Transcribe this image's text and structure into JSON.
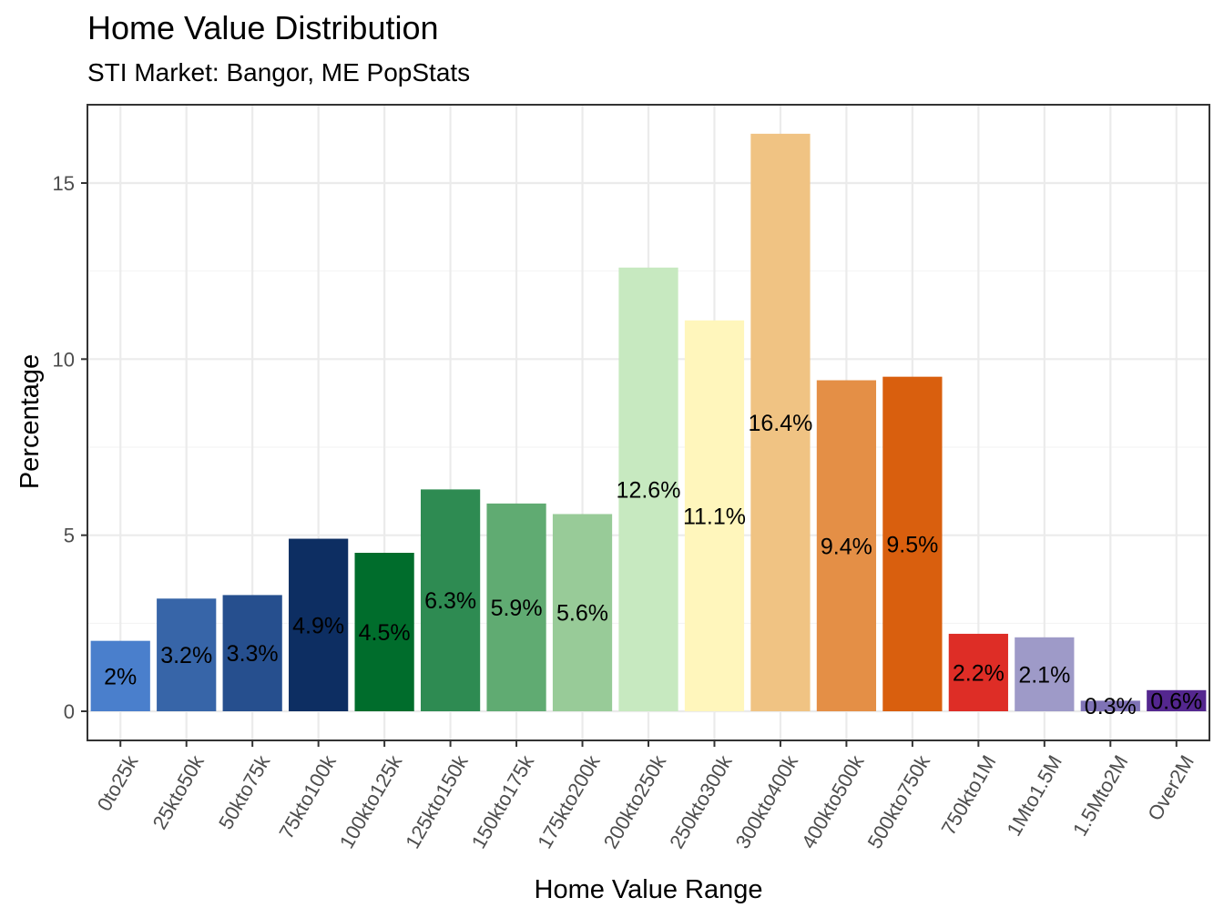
{
  "chart_data": {
    "type": "bar",
    "title": "Home Value Distribution",
    "subtitle": "STI Market: Bangor, ME PopStats",
    "xlabel": "Home Value Range",
    "ylabel": "Percentage",
    "ylim": [
      0,
      17
    ],
    "yticks": [
      0,
      5,
      10,
      15
    ],
    "grid": true,
    "categories": [
      "0to25k",
      "25kto50k",
      "50kto75k",
      "75kto100k",
      "100kto125k",
      "125kto150k",
      "150kto175k",
      "175kto200k",
      "200kto250k",
      "250kto300k",
      "300kto400k",
      "400kto500k",
      "500kto750k",
      "750kto1M",
      "1Mto1.5M",
      "1.5Mto2M",
      "Over2M"
    ],
    "values": [
      2.0,
      3.2,
      3.3,
      4.9,
      4.5,
      6.3,
      5.9,
      5.6,
      12.6,
      11.1,
      16.4,
      9.4,
      9.5,
      2.2,
      2.1,
      0.3,
      0.6
    ],
    "labels": [
      "2%",
      "3.2%",
      "3.3%",
      "4.9%",
      "4.5%",
      "6.3%",
      "5.9%",
      "5.6%",
      "12.6%",
      "11.1%",
      "16.4%",
      "9.4%",
      "9.5%",
      "2.2%",
      "2.1%",
      "0.3%",
      "0.6%"
    ],
    "colors": [
      "#4A7FCC",
      "#3765A8",
      "#264F8E",
      "#0D2E62",
      "#006D2C",
      "#2E8B52",
      "#60AB72",
      "#98CB98",
      "#C7E9C0",
      "#FFF6BC",
      "#F0C383",
      "#E48F46",
      "#D95F0E",
      "#DE2D26",
      "#9E9AC8",
      "#7F73B6",
      "#54278F"
    ]
  }
}
